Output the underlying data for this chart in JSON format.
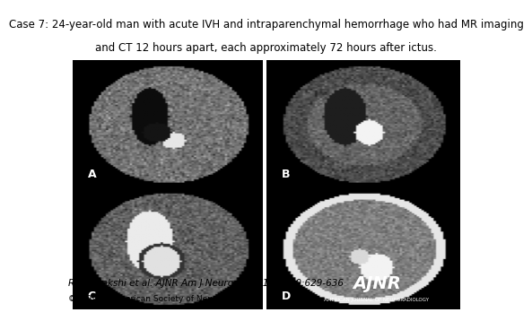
{
  "title_line1": "Case 7: 24-year-old man with acute IVH and intraparenchymal hemorrhage who had MR imaging",
  "title_line2": "and CT 12 hours apart, each approximately 72 hours after ictus.",
  "citation": "Rohit Bakshi et al. AJNR Am J Neuroradiol 1999;20:629-636",
  "copyright": "©1999 by American Society of Neuroradiology",
  "labels": [
    "A",
    "B",
    "C",
    "D"
  ],
  "background_color": "#ffffff",
  "image_area_bg": "#000000",
  "ajnr_box_color": "#1a6ea8",
  "ajnr_text": "AJNR",
  "ajnr_subtext": "AMERICAN JOURNAL OF NEURORADIOLOGY",
  "title_fontsize": 8.5,
  "citation_fontsize": 7.5,
  "copyright_fontsize": 6.5,
  "label_fontsize": 9
}
